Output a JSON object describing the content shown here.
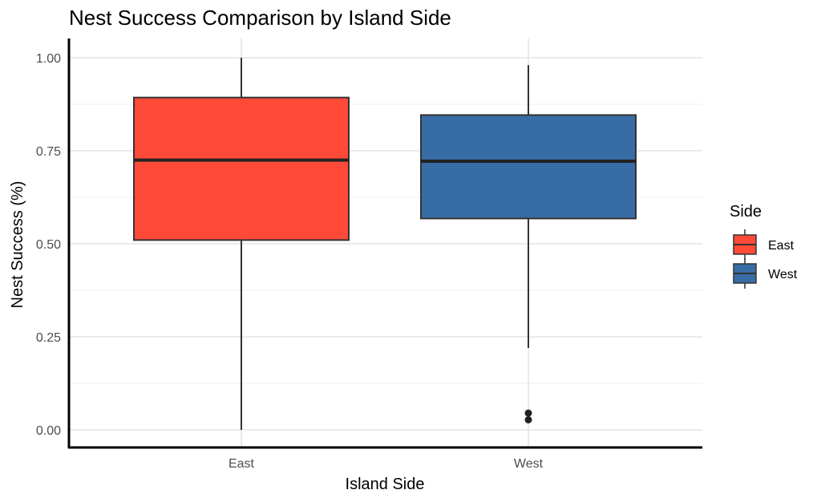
{
  "chart_data": {
    "type": "box",
    "title": "Nest Success Comparison by Island Side",
    "xlabel": "Island Side",
    "ylabel": "Nest Success (%)",
    "ylim": [
      0,
      1.0
    ],
    "y_ticks": [
      "0.00",
      "0.25",
      "0.50",
      "0.75",
      "1.00"
    ],
    "y_tick_values": [
      0,
      0.25,
      0.5,
      0.75,
      1.0
    ],
    "categories": [
      "East",
      "West"
    ],
    "grid": true,
    "legend": {
      "title": "Side",
      "placement": "right",
      "entries": [
        {
          "label": "East",
          "color": "#FF4A38"
        },
        {
          "label": "West",
          "color": "#386CA5"
        }
      ]
    },
    "boxes": [
      {
        "name": "East",
        "color": "#FF4A38",
        "min": 0.0,
        "q1": 0.51,
        "median": 0.725,
        "q3": 0.893,
        "max": 1.0,
        "outliers": []
      },
      {
        "name": "West",
        "color": "#386CA5",
        "min": 0.22,
        "q1": 0.568,
        "median": 0.722,
        "q3": 0.846,
        "max": 0.98,
        "outliers": [
          0.045,
          0.027
        ]
      }
    ]
  }
}
